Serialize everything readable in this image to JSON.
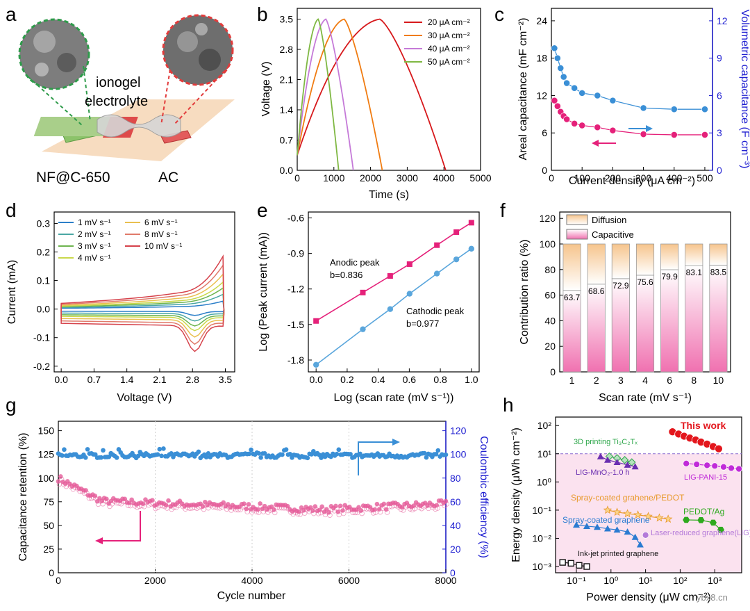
{
  "panels": {
    "a": {
      "label": "a",
      "ionogel_line1": "ionogel",
      "ionogel_line2": "electrolyte",
      "left_electrode": "NF@C-650",
      "right_electrode": "AC"
    },
    "b": {
      "label": "b"
    },
    "c": {
      "label": "c"
    },
    "d": {
      "label": "d"
    },
    "e": {
      "label": "e"
    },
    "f": {
      "label": "f"
    },
    "g": {
      "label": "g"
    },
    "h": {
      "label": "h"
    }
  },
  "chart_data": [
    {
      "id": "b",
      "type": "line",
      "xlabel": "Time (s)",
      "ylabel": "Voltage (V)",
      "xlim": [
        0,
        5000
      ],
      "ylim": [
        0,
        3.75
      ],
      "xticks": [
        "0",
        "1000",
        "2000",
        "3000",
        "4000",
        "5000"
      ],
      "yticks": [
        "0.0",
        "0.7",
        "1.4",
        "2.1",
        "2.8",
        "3.5"
      ],
      "series": [
        {
          "name": "20 μA cm⁻²",
          "color": "#d7191c",
          "charge_end": 2250,
          "discharge_end": 4050
        },
        {
          "name": "30 μA cm⁻²",
          "color": "#f07c12",
          "charge_end": 1280,
          "discharge_end": 2320
        },
        {
          "name": "40 μA cm⁻²",
          "color": "#c57ad8",
          "charge_end": 780,
          "discharge_end": 1530
        },
        {
          "name": "50 μA cm⁻²",
          "color": "#7fb843",
          "charge_end": 570,
          "discharge_end": 1130
        }
      ]
    },
    {
      "id": "c",
      "type": "scatter",
      "xlabel": "Current density (μA cm⁻²)",
      "ylabel": "Areal capacitance (mF cm⁻²)",
      "y2label": "Volumetric capacitance (F cm⁻³)",
      "xlim": [
        0,
        525
      ],
      "ylim": [
        0,
        26
      ],
      "y2lim": [
        0,
        13
      ],
      "xticks": [
        "0",
        "100",
        "200",
        "300",
        "400",
        "500"
      ],
      "yticks": [
        "0",
        "6",
        "12",
        "18",
        "24"
      ],
      "y2ticks": [
        "0",
        "3",
        "6",
        "9",
        "12"
      ],
      "x": [
        10,
        20,
        30,
        40,
        50,
        75,
        100,
        150,
        200,
        300,
        400,
        500
      ],
      "series": [
        {
          "name": "Areal capacitance",
          "color": "#e5217a",
          "values": [
            11.2,
            10.3,
            9.4,
            8.7,
            8.2,
            7.5,
            7.2,
            6.9,
            6.4,
            5.8,
            5.7,
            5.7
          ]
        },
        {
          "name": "Volumetric capacitance",
          "color": "#3a8fd6",
          "values": [
            9.8,
            9.0,
            8.2,
            7.5,
            7.0,
            6.6,
            6.2,
            6.0,
            5.6,
            5.0,
            4.9,
            4.9
          ]
        }
      ]
    },
    {
      "id": "d",
      "type": "line",
      "xlabel": "Voltage (V)",
      "ylabel": "Current (mA)",
      "xlim": [
        -0.15,
        3.7
      ],
      "ylim": [
        -0.22,
        0.34
      ],
      "xticks": [
        "0.0",
        "0.7",
        "1.4",
        "2.1",
        "2.8",
        "3.5"
      ],
      "yticks": [
        "-0.2",
        "-0.1",
        "0.0",
        "0.1",
        "0.2",
        "0.3"
      ],
      "series": [
        {
          "name": "1 mV s⁻¹",
          "color": "#2c7fc9",
          "scale": 0.15
        },
        {
          "name": "2 mV s⁻¹",
          "color": "#4aa7a4",
          "scale": 0.28
        },
        {
          "name": "3 mV s⁻¹",
          "color": "#6db44f",
          "scale": 0.4
        },
        {
          "name": "4 mV s⁻¹",
          "color": "#c9d84a",
          "scale": 0.51
        },
        {
          "name": "6 mV s⁻¹",
          "color": "#e9c04f",
          "scale": 0.66
        },
        {
          "name": "8 mV s⁻¹",
          "color": "#e07a6a",
          "scale": 0.83
        },
        {
          "name": "10 mV s⁻¹",
          "color": "#d6424b",
          "scale": 1.0
        }
      ]
    },
    {
      "id": "e",
      "type": "scatter",
      "xlabel": "Log (scan rate (mV s⁻¹))",
      "ylabel": "Log (Peak current (mA))",
      "xlim": [
        -0.05,
        1.05
      ],
      "ylim": [
        -1.9,
        -0.55
      ],
      "xticks": [
        "0.0",
        "0.2",
        "0.4",
        "0.6",
        "0.8",
        "1.0"
      ],
      "yticks": [
        "-1.8",
        "-1.5",
        "-1.2",
        "-0.9",
        "-0.6"
      ],
      "x": [
        0,
        0.301,
        0.477,
        0.602,
        0.778,
        0.903,
        1.0
      ],
      "series": [
        {
          "name": "Anodic peak",
          "note": "b=0.836",
          "color": "#e5217a",
          "values": [
            -1.47,
            -1.23,
            -1.09,
            -0.99,
            -0.83,
            -0.72,
            -0.64
          ]
        },
        {
          "name": "Cathodic peak",
          "note": "b=0.977",
          "color": "#5aa6dc",
          "values": [
            -1.84,
            -1.54,
            -1.37,
            -1.24,
            -1.07,
            -0.95,
            -0.86
          ]
        }
      ]
    },
    {
      "id": "f",
      "type": "bar",
      "xlabel": "Scan rate (mV s⁻¹)",
      "ylabel": "Contribution ratio (%)",
      "ylim": [
        0,
        125
      ],
      "yticks": [
        "0",
        "20",
        "40",
        "60",
        "80",
        "100",
        "120"
      ],
      "categories": [
        "1",
        "2",
        "3",
        "4",
        "6",
        "8",
        "10"
      ],
      "series": [
        {
          "name": "Capacitive",
          "values": [
            63.7,
            68.6,
            72.9,
            75.6,
            79.9,
            83.1,
            83.5
          ]
        },
        {
          "name": "Diffusion",
          "values": [
            36.3,
            31.4,
            27.1,
            24.4,
            20.1,
            16.9,
            16.5
          ]
        }
      ],
      "labels": [
        "63.7",
        "68.6",
        "72.9",
        "75.6",
        "79.9",
        "83.1",
        "83.5"
      ]
    },
    {
      "id": "g",
      "type": "scatter",
      "xlabel": "Cycle number",
      "ylabel": "Capacitance retention (%)",
      "y2label": "Coulombic efficiency (%)",
      "xlim": [
        0,
        8000
      ],
      "ylim": [
        0,
        160
      ],
      "y2lim": [
        0,
        128
      ],
      "xticks": [
        "0",
        "2000",
        "4000",
        "6000",
        "8000"
      ],
      "yticks": [
        "0",
        "25",
        "50",
        "75",
        "100",
        "125",
        "150"
      ],
      "y2ticks": [
        "0",
        "20",
        "40",
        "60",
        "80",
        "100",
        "120"
      ],
      "series": [
        {
          "name": "Capacitance retention",
          "color": "#e55d9a",
          "start": 100,
          "plateau": 67,
          "end": 73
        },
        {
          "name": "Coulombic efficiency",
          "color": "#3a8fd6",
          "mean": 99
        }
      ]
    },
    {
      "id": "h",
      "type": "scatter",
      "xlabel": "Power density (μW cm⁻²)",
      "ylabel": "Energy density (μWh cm⁻²)",
      "xscale": "log",
      "yscale": "log",
      "xticks": [
        "10⁻¹",
        "10⁰",
        "10¹",
        "10²",
        "10³"
      ],
      "yticks": [
        "10⁻³",
        "10⁻²",
        "10⁻¹",
        "10⁰",
        "10¹",
        "10²"
      ],
      "series": [
        {
          "name": "This work",
          "color": "#e3161c",
          "points": [
            [
              60,
              60
            ],
            [
              90,
              50
            ],
            [
              130,
              42
            ],
            [
              190,
              36
            ],
            [
              280,
              31
            ],
            [
              400,
              26
            ],
            [
              600,
              22
            ],
            [
              900,
              18
            ],
            [
              1300,
              15
            ]
          ]
        },
        {
          "name": "3D printing Ti₃C₂Tₓ",
          "color": "#2da64a",
          "points": [
            [
              0.9,
              8
            ],
            [
              1.5,
              7
            ],
            [
              2.5,
              6
            ],
            [
              4,
              5
            ]
          ]
        },
        {
          "name": "LIG-MnO₂-1.0 h",
          "color": "#6a2eb0",
          "points": [
            [
              0.5,
              8
            ],
            [
              0.8,
              6
            ],
            [
              1.5,
              5
            ],
            [
              3,
              4
            ],
            [
              5,
              3.5
            ]
          ]
        },
        {
          "name": "LIG-PANI-15",
          "color": "#c02ad8",
          "points": [
            [
              150,
              4.5
            ],
            [
              300,
              4.2
            ],
            [
              600,
              3.9
            ],
            [
              1000,
              3.7
            ],
            [
              1800,
              3.4
            ],
            [
              3000,
              3.1
            ],
            [
              5000,
              2.9
            ]
          ]
        },
        {
          "name": "Spray-coated grahene/PEDOT",
          "color": "#e89a2c",
          "points": [
            [
              0.8,
              0.1
            ],
            [
              1.5,
              0.085
            ],
            [
              3,
              0.075
            ],
            [
              6,
              0.068
            ],
            [
              12,
              0.06
            ],
            [
              25,
              0.053
            ],
            [
              45,
              0.048
            ]
          ]
        },
        {
          "name": "PEDOT/Ag",
          "color": "#2eaa1e",
          "points": [
            [
              150,
              0.045
            ],
            [
              400,
              0.044
            ],
            [
              900,
              0.036
            ],
            [
              1500,
              0.02
            ]
          ]
        },
        {
          "name": "Spray-coated graphene",
          "color": "#2a7bd1",
          "points": [
            [
              0.1,
              0.03
            ],
            [
              0.2,
              0.027
            ],
            [
              0.4,
              0.025
            ],
            [
              0.8,
              0.022
            ],
            [
              1.5,
              0.02
            ],
            [
              3,
              0.017
            ],
            [
              5,
              0.011
            ],
            [
              7,
              0.006
            ]
          ]
        },
        {
          "name": "Laser-reduced graphene(LIG)",
          "color": "#b47ad9",
          "points": [
            [
              10,
              0.013
            ]
          ]
        },
        {
          "name": "Ink-jet printed graphene",
          "color": "#111111",
          "points": [
            [
              0.04,
              0.0014
            ],
            [
              0.07,
              0.0013
            ],
            [
              0.12,
              0.0011
            ],
            [
              0.2,
              0.001
            ]
          ]
        }
      ],
      "shaded_band": "10⁻³ to 10¹"
    }
  ],
  "watermark": "ybx8.cn"
}
